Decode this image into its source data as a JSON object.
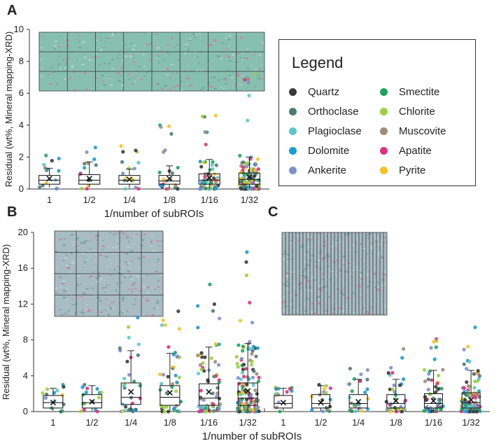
{
  "panels": {
    "a": "A",
    "b": "B",
    "c": "C"
  },
  "legend": {
    "title": "Legend",
    "items": [
      {
        "name": "Quartz",
        "color": "#3a3a3a"
      },
      {
        "name": "Orthoclase",
        "color": "#4d7a75"
      },
      {
        "name": "Plagioclase",
        "color": "#5cc7c9"
      },
      {
        "name": "Dolomite",
        "color": "#1a9ad6"
      },
      {
        "name": "Ankerite",
        "color": "#7b8fd0"
      },
      {
        "name": "Smectite",
        "color": "#1fa55a"
      },
      {
        "name": "Chlorite",
        "color": "#9ccf3f"
      },
      {
        "name": "Muscovite",
        "color": "#a08c78"
      },
      {
        "name": "Apatite",
        "color": "#e0307e"
      },
      {
        "name": "Pyrite",
        "color": "#f7c21e"
      }
    ]
  },
  "chart_data": [
    {
      "id": "A",
      "type": "box-scatter",
      "categories": [
        "1",
        "1/2",
        "1/4",
        "1/8",
        "1/16",
        "1/32"
      ],
      "ylabel": "Residual (wt%, Mineral mapping-XRD)",
      "xlabel": "1/number of subROIs",
      "ylim": [
        0,
        10
      ],
      "yticks": [
        0,
        2,
        4,
        6,
        8,
        10
      ],
      "boxes": [
        {
          "min": 0.1,
          "q1": 0.3,
          "median": 0.55,
          "q3": 0.85,
          "max": 1.3,
          "mean": 0.65
        },
        {
          "min": 0.1,
          "q1": 0.3,
          "median": 0.55,
          "q3": 0.9,
          "max": 1.7,
          "mean": 0.65
        },
        {
          "min": 0.05,
          "q1": 0.3,
          "median": 0.55,
          "q3": 0.85,
          "max": 1.25,
          "mean": 0.6
        },
        {
          "min": 0.05,
          "q1": 0.3,
          "median": 0.5,
          "q3": 0.85,
          "max": 1.45,
          "mean": 0.65
        },
        {
          "min": 0.0,
          "q1": 0.3,
          "median": 0.55,
          "q3": 0.95,
          "max": 1.85,
          "mean": 0.7
        },
        {
          "min": 0.0,
          "q1": 0.3,
          "median": 0.6,
          "q3": 1.0,
          "max": 2.0,
          "mean": 0.75
        }
      ],
      "outlier_max": [
        2.1,
        2.6,
        2.7,
        4.0,
        4.6,
        7.2
      ]
    },
    {
      "id": "B",
      "type": "box-scatter",
      "categories": [
        "1",
        "1/2",
        "1/4",
        "1/8",
        "1/16",
        "1/32"
      ],
      "ylabel": "Residual (wt%, Mineral mapping-XRD)",
      "ylim": [
        0,
        20
      ],
      "yticks": [
        0,
        4,
        8,
        12,
        16,
        20
      ],
      "boxes": [
        {
          "min": 0.1,
          "q1": 0.4,
          "median": 1.0,
          "q3": 1.8,
          "max": 2.6,
          "mean": 1.0
        },
        {
          "min": 0.1,
          "q1": 0.4,
          "median": 1.0,
          "q3": 1.9,
          "max": 2.9,
          "mean": 1.1
        },
        {
          "min": 0.1,
          "q1": 0.8,
          "median": 1.6,
          "q3": 3.2,
          "max": 6.8,
          "mean": 2.2
        },
        {
          "min": 0.1,
          "q1": 0.7,
          "median": 1.6,
          "q3": 2.9,
          "max": 6.5,
          "mean": 2.1
        },
        {
          "min": 0.0,
          "q1": 0.7,
          "median": 1.5,
          "q3": 3.1,
          "max": 7.2,
          "mean": 2.2
        },
        {
          "min": 0.0,
          "q1": 0.7,
          "median": 1.5,
          "q3": 3.2,
          "max": 7.6,
          "mean": 2.3
        }
      ],
      "outlier_max": [
        3.0,
        3.0,
        10.5,
        11.2,
        14.2,
        17.8
      ]
    },
    {
      "id": "C",
      "type": "box-scatter",
      "categories": [
        "1",
        "1/2",
        "1/4",
        "1/8",
        "1/16",
        "1/32"
      ],
      "xlabel": "1/number of subROIs",
      "ylim": [
        0,
        20
      ],
      "boxes": [
        {
          "min": 0.1,
          "q1": 0.4,
          "median": 0.9,
          "q3": 1.8,
          "max": 2.6,
          "mean": 1.0
        },
        {
          "min": 0.1,
          "q1": 0.4,
          "median": 0.9,
          "q3": 1.9,
          "max": 2.9,
          "mean": 1.0
        },
        {
          "min": 0.1,
          "q1": 0.4,
          "median": 0.9,
          "q3": 1.9,
          "max": 3.6,
          "mean": 1.1
        },
        {
          "min": 0.0,
          "q1": 0.4,
          "median": 0.9,
          "q3": 1.9,
          "max": 3.6,
          "mean": 1.2
        },
        {
          "min": 0.0,
          "q1": 0.4,
          "median": 0.9,
          "q3": 2.0,
          "max": 4.6,
          "mean": 1.2
        },
        {
          "min": 0.0,
          "q1": 0.4,
          "median": 1.0,
          "q3": 2.1,
          "max": 4.6,
          "mean": 1.3
        }
      ],
      "outlier_max": [
        2.7,
        3.0,
        4.8,
        7.0,
        8.1,
        9.4
      ]
    }
  ]
}
